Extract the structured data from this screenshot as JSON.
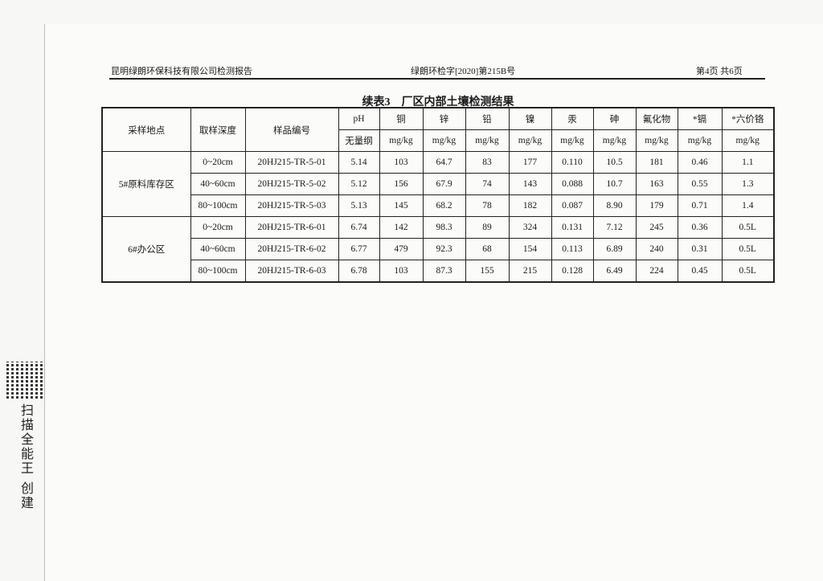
{
  "header": {
    "company": "昆明绿朗环保科技有限公司检测报告",
    "report_no": "绿朗环检字[2020]第215B号",
    "page": "第4页 共6页"
  },
  "caption": "续表3　厂区内部土壤检测结果",
  "table": {
    "headers": [
      "采样地点",
      "取样深度",
      "样品编号"
    ],
    "params": [
      "pH",
      "铜",
      "锌",
      "铅",
      "镍",
      "汞",
      "砷",
      "氟化物",
      "*镉",
      "*六价铬"
    ],
    "units": [
      "无量纲",
      "mg/kg",
      "mg/kg",
      "mg/kg",
      "mg/kg",
      "mg/kg",
      "mg/kg",
      "mg/kg",
      "mg/kg",
      "mg/kg"
    ],
    "groups": [
      {
        "site": "5#原料库存区",
        "rows": [
          {
            "depth": "0~20cm",
            "id": "20HJ215-TR-5-01",
            "values": [
              "5.14",
              "103",
              "64.7",
              "83",
              "177",
              "0.110",
              "10.5",
              "181",
              "0.46",
              "1.1"
            ]
          },
          {
            "depth": "40~60cm",
            "id": "20HJ215-TR-5-02",
            "values": [
              "5.12",
              "156",
              "67.9",
              "74",
              "143",
              "0.088",
              "10.7",
              "163",
              "0.55",
              "1.3"
            ]
          },
          {
            "depth": "80~100cm",
            "id": "20HJ215-TR-5-03",
            "values": [
              "5.13",
              "145",
              "68.2",
              "78",
              "182",
              "0.087",
              "8.90",
              "179",
              "0.71",
              "1.4"
            ]
          }
        ]
      },
      {
        "site": "6#办公区",
        "rows": [
          {
            "depth": "0~20cm",
            "id": "20HJ215-TR-6-01",
            "values": [
              "6.74",
              "142",
              "98.3",
              "89",
              "324",
              "0.131",
              "7.12",
              "245",
              "0.36",
              "0.5L"
            ]
          },
          {
            "depth": "40~60cm",
            "id": "20HJ215-TR-6-02",
            "values": [
              "6.77",
              "479",
              "92.3",
              "68",
              "154",
              "0.113",
              "6.89",
              "240",
              "0.31",
              "0.5L"
            ]
          },
          {
            "depth": "80~100cm",
            "id": "20HJ215-TR-6-03",
            "values": [
              "6.78",
              "103",
              "87.3",
              "155",
              "215",
              "0.128",
              "6.49",
              "224",
              "0.45",
              "0.5L"
            ]
          }
        ]
      }
    ]
  },
  "watermark": "扫描全能王 创建"
}
